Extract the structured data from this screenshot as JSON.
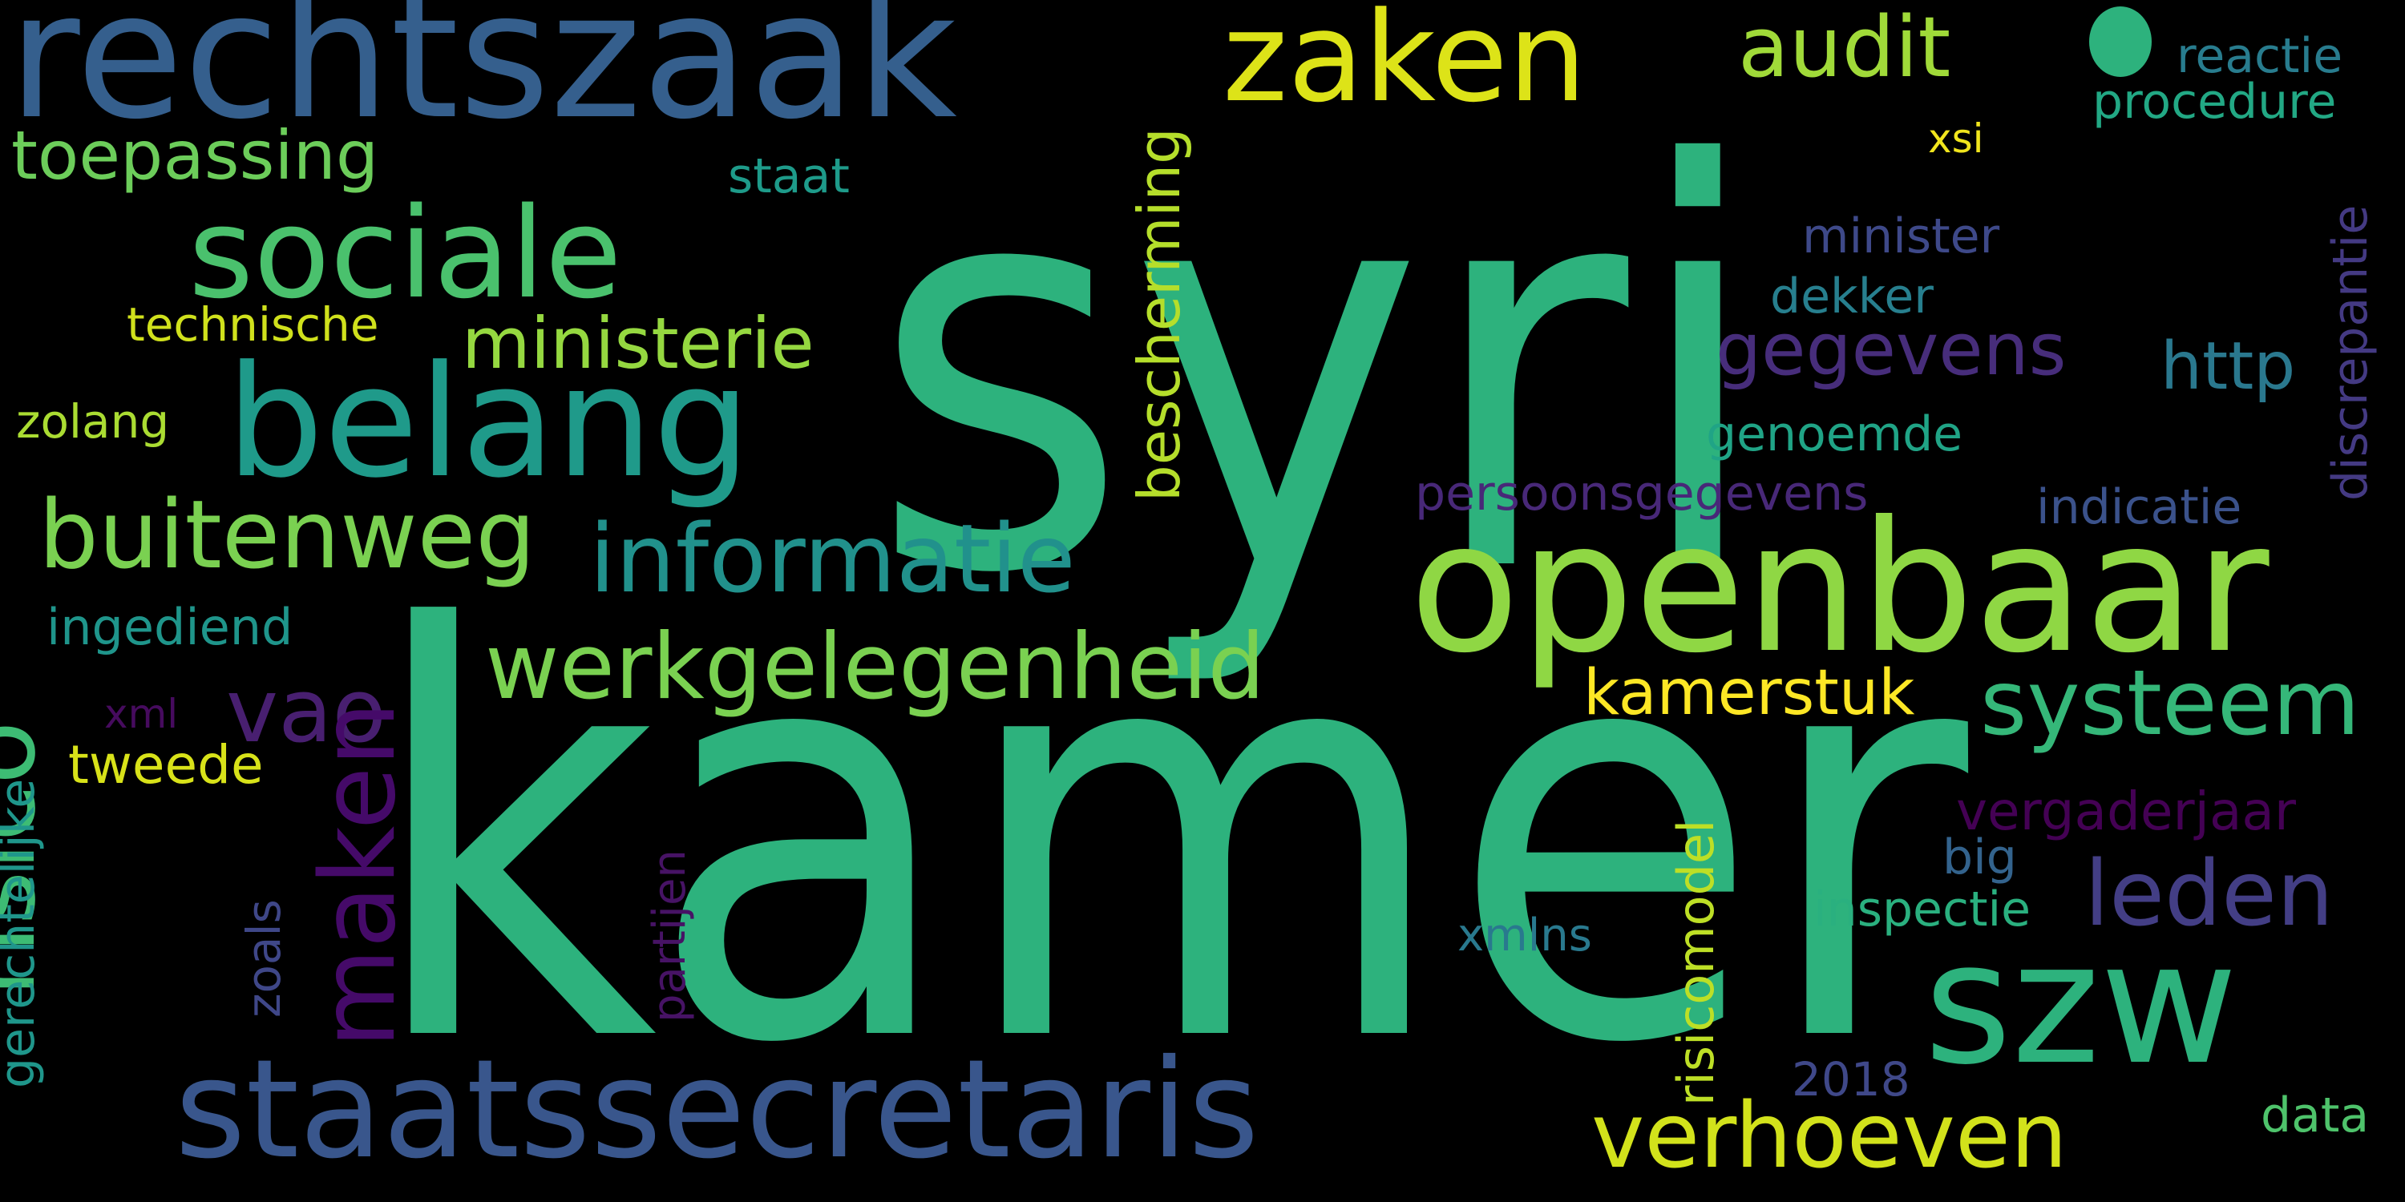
{
  "background": "#000000",
  "words": [
    {
      "key": "syri",
      "text": "syri",
      "color": "#2db27d"
    },
    {
      "key": "kamer",
      "text": "kamer",
      "color": "#2db27d"
    },
    {
      "key": "openbaar",
      "text": "openbaar",
      "color": "#8fd744"
    },
    {
      "key": "rechtszaak",
      "text": "rechtszaak",
      "color": "#355f8d"
    },
    {
      "key": "staatssecretaris",
      "text": "staatssecretaris",
      "color": "#39568c"
    },
    {
      "key": "szw",
      "text": "szw",
      "color": "#2db27d"
    },
    {
      "key": "belang",
      "text": "belang",
      "color": "#1f9a8a"
    },
    {
      "key": "sociale",
      "text": "sociale",
      "color": "#4ac16d"
    },
    {
      "key": "zaken",
      "text": "zaken",
      "color": "#dde318"
    },
    {
      "key": "werkgelegenheid",
      "text": "werkgelegenheid",
      "color": "#7ad151"
    },
    {
      "key": "informatie",
      "text": "informatie",
      "color": "#21918c"
    },
    {
      "key": "buitenweg",
      "text": "buitenweg",
      "color": "#7ad151"
    },
    {
      "key": "systeem",
      "text": "systeem",
      "color": "#35b779"
    },
    {
      "key": "verhoeven",
      "text": "verhoeven",
      "color": "#d2e21b"
    },
    {
      "key": "audit",
      "text": "audit",
      "color": "#a0da39"
    },
    {
      "key": "ministerie",
      "text": "ministerie",
      "color": "#95d840"
    },
    {
      "key": "toepassing",
      "text": "toepassing",
      "color": "#6ccd5a"
    },
    {
      "key": "gegevens",
      "text": "gegevens",
      "color": "#472d7b"
    },
    {
      "key": "leden",
      "text": "leden",
      "color": "#433e85"
    },
    {
      "key": "kamerstuk",
      "text": "kamerstuk",
      "color": "#fde725"
    },
    {
      "key": "vao",
      "text": "vao",
      "color": "#481f70"
    },
    {
      "key": "http",
      "text": "http",
      "color": "#2a788e"
    },
    {
      "key": "vergaderjaar",
      "text": "vergaderjaar",
      "color": "#440154"
    },
    {
      "key": "procedure",
      "text": "procedure",
      "color": "#22a884"
    },
    {
      "key": "reactie",
      "text": "reactie",
      "color": "#287c8e"
    },
    {
      "key": "staat",
      "text": "staat",
      "color": "#1e9b8a"
    },
    {
      "key": "technische",
      "text": "technische",
      "color": "#d0e11c"
    },
    {
      "key": "minister",
      "text": "minister",
      "color": "#3e4989"
    },
    {
      "key": "dekker",
      "text": "dekker",
      "color": "#277f8e"
    },
    {
      "key": "xsi",
      "text": "xsi",
      "color": "#f1e51d"
    },
    {
      "key": "zolang",
      "text": "zolang",
      "color": "#aadc32"
    },
    {
      "key": "genoemde",
      "text": "genoemde",
      "color": "#20a486"
    },
    {
      "key": "persoonsgegevens",
      "text": "persoonsgegevens",
      "color": "#482878"
    },
    {
      "key": "indicatie",
      "text": "indicatie",
      "color": "#3b528b"
    },
    {
      "key": "ingediend",
      "text": "ingediend",
      "color": "#1f958b"
    },
    {
      "key": "xml",
      "text": "xml",
      "color": "#460b5e"
    },
    {
      "key": "tweede",
      "text": "tweede",
      "color": "#d8e219"
    },
    {
      "key": "big",
      "text": "big",
      "color": "#33638d"
    },
    {
      "key": "inspectie",
      "text": "inspectie",
      "color": "#2ab07f"
    },
    {
      "key": "xmlns",
      "text": "xmlns",
      "color": "#29798e"
    },
    {
      "key": "2018",
      "text": "2018",
      "color": "#3f4889"
    },
    {
      "key": "data",
      "text": "data",
      "color": "#4ec36b"
    },
    {
      "key": "risico",
      "text": "risico",
      "color": "#3dbc74"
    },
    {
      "key": "maken",
      "text": "maken",
      "color": "#450a69"
    },
    {
      "key": "bescherming",
      "text": "bescherming",
      "color": "#b5de2b"
    },
    {
      "key": "discrepantie",
      "text": "discrepantie",
      "color": "#443a83"
    },
    {
      "key": "gerechtelijke",
      "text": "gerechtelijke",
      "color": "#1f968b"
    },
    {
      "key": "zoals",
      "text": "zoals",
      "color": "#3f4788"
    },
    {
      "key": "partijen",
      "text": "partijen",
      "color": "#471365"
    },
    {
      "key": "risicomodel",
      "text": "risicomodel",
      "color": "#bddf26"
    }
  ]
}
